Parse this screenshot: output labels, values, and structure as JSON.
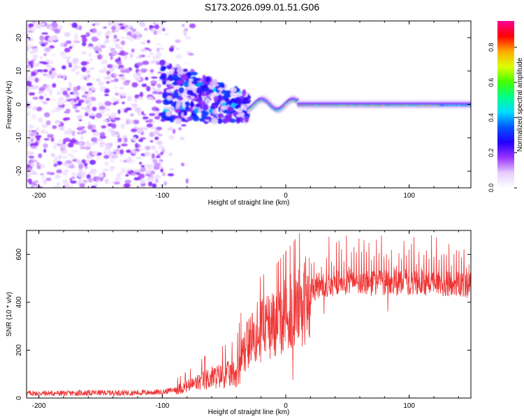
{
  "title": "S173.2026.099.01.51.G06",
  "chart_data": [
    {
      "type": "heatmap",
      "xlabel": "Height of straight line (km)",
      "ylabel": "Frequency (Hz)",
      "xlim": [
        -210,
        150
      ],
      "ylim": [
        -25,
        25
      ],
      "xticks": [
        -200,
        -100,
        0,
        100
      ],
      "xtick_labels": [
        "-200",
        "-100",
        "0",
        "100"
      ],
      "yticks": [
        -20,
        -10,
        0,
        10,
        20
      ],
      "ytick_labels": [
        "-20",
        "-10",
        "0",
        "10",
        "20"
      ],
      "colorbar": {
        "label": "Normalized spectral amplitude",
        "range": [
          0,
          0.95
        ],
        "ticks": [
          0.0,
          0.2,
          0.4,
          0.6,
          0.8
        ],
        "tick_labels": [
          "0.0",
          "0.2",
          "0.4",
          "0.6",
          "0.8"
        ],
        "colors": [
          "#ffffff",
          "#e6ccff",
          "#9933ff",
          "#2200ff",
          "#0055ff",
          "#00ddff",
          "#00ff88",
          "#44ff00",
          "#ddff00",
          "#ffaa00",
          "#ff0000",
          "#ff0099"
        ]
      },
      "features": [
        {
          "name": "scattered noise",
          "x_range": [
            -210,
            -100
          ],
          "freq_range": [
            -25,
            25
          ],
          "amplitude": 0.1
        },
        {
          "name": "transition",
          "x_range": [
            -100,
            -30
          ],
          "freq_range": [
            -8,
            12
          ],
          "amplitude": 0.25
        },
        {
          "name": "coherent reflection",
          "x_range": [
            -30,
            150
          ],
          "freq_center": 0,
          "amplitude": 0.8
        }
      ]
    },
    {
      "type": "line",
      "xlabel": "Height of straight line (km)",
      "ylabel": "SNR (10 * v/v)",
      "xlim": [
        -210,
        150
      ],
      "ylim": [
        0,
        700
      ],
      "xticks": [
        -200,
        -100,
        0,
        100
      ],
      "xtick_labels": [
        "-200",
        "-100",
        "0",
        "100"
      ],
      "yticks": [
        0,
        200,
        400,
        600
      ],
      "ytick_labels": [
        "0",
        "200",
        "400",
        "600"
      ],
      "series": [
        {
          "name": "SNR",
          "color": "#ee3333",
          "x": [
            -210,
            -180,
            -150,
            -120,
            -100,
            -90,
            -80,
            -70,
            -60,
            -50,
            -40,
            -35,
            -30,
            -25,
            -20,
            -15,
            -10,
            -5,
            0,
            5,
            10,
            15,
            20,
            25,
            30,
            40,
            50,
            60,
            80,
            100,
            120,
            140,
            150
          ],
          "values": [
            20,
            20,
            22,
            22,
            25,
            35,
            50,
            70,
            90,
            100,
            110,
            180,
            250,
            280,
            300,
            310,
            320,
            340,
            360,
            380,
            400,
            420,
            440,
            460,
            470,
            480,
            485,
            480,
            480,
            485,
            480,
            480,
            470
          ]
        }
      ]
    }
  ]
}
